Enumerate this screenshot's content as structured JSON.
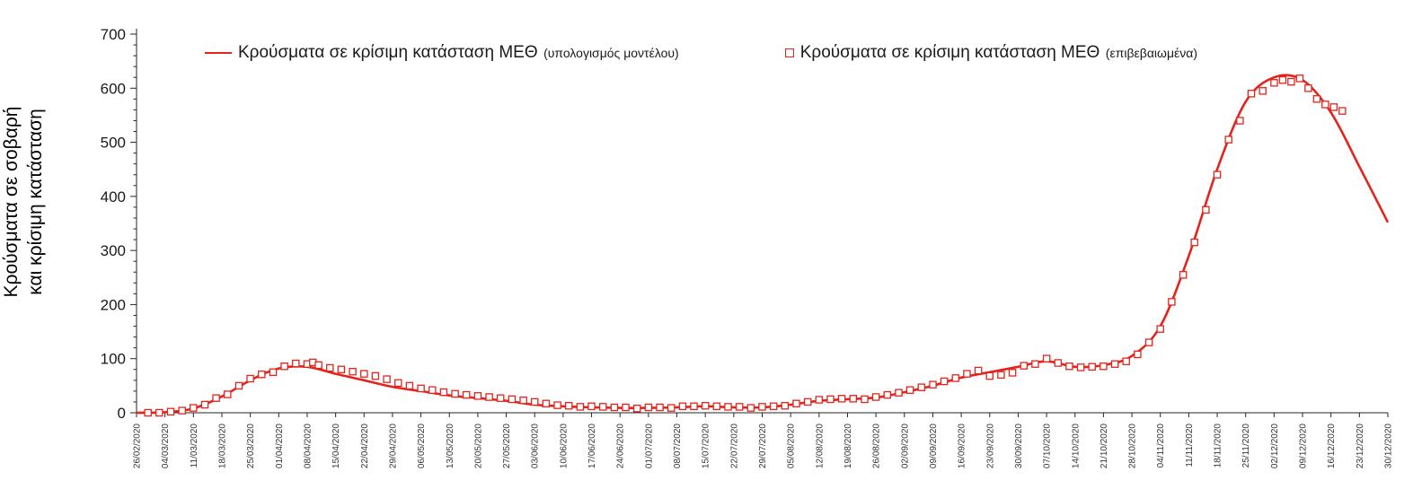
{
  "page": {
    "background": "#ffffff"
  },
  "ylabel": {
    "line1": "Κρούσματα σε σοβαρή",
    "line2": "και κρίσιμη κατάσταση"
  },
  "legend": {
    "model": {
      "label": "Κρούσματα σε κρίσιμη κατάσταση ΜΕΘ",
      "suffix": "(υπολογισμός μοντέλου)"
    },
    "confirmed": {
      "label": "Κρούσματα σε κρίσιμη κατάσταση ΜΕΘ",
      "suffix": "(επιβεβαιωμένα)"
    }
  },
  "chart_data": {
    "type": "line",
    "title": "",
    "ylabel": "Κρούσματα σε σοβαρή και κρίσιμη κατάσταση",
    "xlabel": "",
    "ylim": [
      0,
      700
    ],
    "ytick_step": 100,
    "yminor_step": 20,
    "grid": false,
    "legend_position": "top",
    "line_color": "#e4241c",
    "marker_color": "#e4241c",
    "axis_color": "#262626",
    "categories": [
      "26/02/2020",
      "04/03/2020",
      "11/03/2020",
      "18/03/2020",
      "25/03/2020",
      "01/04/2020",
      "08/04/2020",
      "15/04/2020",
      "22/04/2020",
      "29/04/2020",
      "06/05/2020",
      "13/05/2020",
      "20/05/2020",
      "27/05/2020",
      "03/06/2020",
      "10/06/2020",
      "17/06/2020",
      "24/06/2020",
      "01/07/2020",
      "08/07/2020",
      "15/07/2020",
      "22/07/2020",
      "29/07/2020",
      "05/08/2020",
      "12/08/2020",
      "19/08/2020",
      "26/08/2020",
      "02/09/2020",
      "09/09/2020",
      "16/09/2020",
      "23/09/2020",
      "30/09/2020",
      "07/10/2020",
      "14/10/2020",
      "21/10/2020",
      "28/10/2020",
      "04/11/2020",
      "11/11/2020",
      "18/11/2020",
      "25/11/2020",
      "02/12/2020",
      "09/12/2020",
      "16/12/2020",
      "23/12/2020",
      "30/12/2020"
    ],
    "series": [
      {
        "name": "Κρούσματα σε κρίσιμη κατάσταση ΜΕΘ (υπολογισμός μοντέλου)",
        "type": "line",
        "values": [
          0,
          1,
          8,
          30,
          60,
          82,
          85,
          72,
          60,
          48,
          40,
          32,
          27,
          22,
          15,
          12,
          10,
          9,
          9,
          10,
          12,
          10,
          10,
          15,
          22,
          25,
          28,
          38,
          50,
          65,
          75,
          85,
          95,
          85,
          88,
          105,
          160,
          290,
          450,
          575,
          620,
          615,
          555,
          455,
          352
        ]
      },
      {
        "name": "Κρούσματα σε κρίσιμη κατάσταση ΜΕΘ (επιβεβαιωμένα)",
        "type": "scatter",
        "marker": "open-square",
        "points": [
          [
            0.4,
            0
          ],
          [
            0.8,
            0
          ],
          [
            1.2,
            2
          ],
          [
            1.6,
            4
          ],
          [
            2.0,
            9
          ],
          [
            2.4,
            15
          ],
          [
            2.8,
            27
          ],
          [
            3.2,
            34
          ],
          [
            3.6,
            50
          ],
          [
            4.0,
            63
          ],
          [
            4.4,
            71
          ],
          [
            4.8,
            75
          ],
          [
            5.2,
            86
          ],
          [
            5.6,
            91
          ],
          [
            6.0,
            90
          ],
          [
            6.2,
            93
          ],
          [
            6.4,
            88
          ],
          [
            6.8,
            83
          ],
          [
            7.2,
            80
          ],
          [
            7.6,
            76
          ],
          [
            8.0,
            72
          ],
          [
            8.4,
            68
          ],
          [
            8.8,
            62
          ],
          [
            9.2,
            55
          ],
          [
            9.6,
            50
          ],
          [
            10.0,
            45
          ],
          [
            10.4,
            42
          ],
          [
            10.8,
            38
          ],
          [
            11.2,
            35
          ],
          [
            11.6,
            33
          ],
          [
            12.0,
            31
          ],
          [
            12.4,
            29
          ],
          [
            12.8,
            27
          ],
          [
            13.2,
            25
          ],
          [
            13.6,
            23
          ],
          [
            14.0,
            20
          ],
          [
            14.4,
            17
          ],
          [
            14.8,
            14
          ],
          [
            15.2,
            13
          ],
          [
            15.6,
            11
          ],
          [
            16.0,
            12
          ],
          [
            16.4,
            11
          ],
          [
            16.8,
            10
          ],
          [
            17.2,
            10
          ],
          [
            17.6,
            8
          ],
          [
            18.0,
            10
          ],
          [
            18.4,
            10
          ],
          [
            18.8,
            9
          ],
          [
            19.2,
            12
          ],
          [
            19.6,
            12
          ],
          [
            20.0,
            13
          ],
          [
            20.4,
            12
          ],
          [
            20.8,
            11
          ],
          [
            21.2,
            11
          ],
          [
            21.6,
            9
          ],
          [
            22.0,
            11
          ],
          [
            22.4,
            12
          ],
          [
            22.8,
            13
          ],
          [
            23.2,
            17
          ],
          [
            23.6,
            20
          ],
          [
            24.0,
            24
          ],
          [
            24.4,
            25
          ],
          [
            24.8,
            26
          ],
          [
            25.2,
            26
          ],
          [
            25.6,
            25
          ],
          [
            26.0,
            29
          ],
          [
            26.4,
            33
          ],
          [
            26.8,
            37
          ],
          [
            27.2,
            42
          ],
          [
            27.6,
            47
          ],
          [
            28.0,
            52
          ],
          [
            28.4,
            58
          ],
          [
            28.8,
            64
          ],
          [
            29.2,
            72
          ],
          [
            29.6,
            78
          ],
          [
            30.0,
            68
          ],
          [
            30.4,
            70
          ],
          [
            30.8,
            74
          ],
          [
            31.2,
            87
          ],
          [
            31.6,
            90
          ],
          [
            32.0,
            100
          ],
          [
            32.4,
            92
          ],
          [
            32.8,
            86
          ],
          [
            33.2,
            84
          ],
          [
            33.6,
            85
          ],
          [
            34.0,
            86
          ],
          [
            34.4,
            90
          ],
          [
            34.8,
            95
          ],
          [
            35.2,
            108
          ],
          [
            35.6,
            130
          ],
          [
            36.0,
            155
          ],
          [
            36.4,
            205
          ],
          [
            36.8,
            255
          ],
          [
            37.2,
            315
          ],
          [
            37.6,
            375
          ],
          [
            38.0,
            440
          ],
          [
            38.4,
            505
          ],
          [
            38.8,
            540
          ],
          [
            39.2,
            590
          ],
          [
            39.6,
            595
          ],
          [
            40.0,
            610
          ],
          [
            40.3,
            615
          ],
          [
            40.6,
            612
          ],
          [
            40.9,
            618
          ],
          [
            41.2,
            600
          ],
          [
            41.5,
            580
          ],
          [
            41.8,
            570
          ],
          [
            42.1,
            565
          ],
          [
            42.4,
            558
          ]
        ]
      }
    ]
  }
}
